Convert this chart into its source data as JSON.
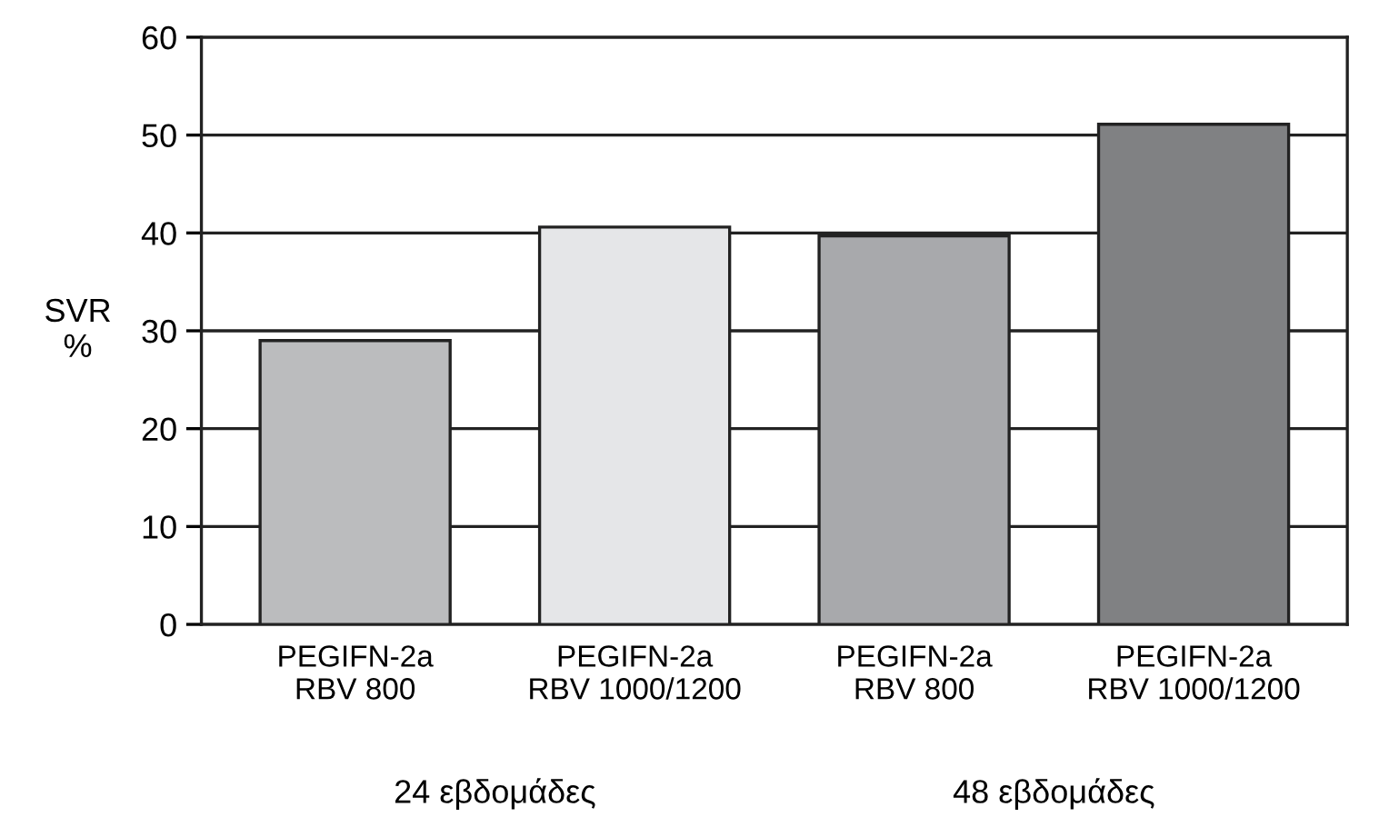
{
  "chart_data": {
    "type": "bar",
    "categories": [
      "PEGIFN-2a\nRBV 800",
      "PEGIFN-2a\nRBV 1000/1200",
      "PEGIFN-2a\nRBV 800",
      "PEGIFN-2a\nRBV 1000/1200"
    ],
    "values": [
      29,
      40.6,
      39.7,
      51.1
    ],
    "colors": [
      "#bbbcbe",
      "#e5e6e8",
      "#a8a9ac",
      "#808183"
    ],
    "ylabel": "SVR\n%",
    "ylim": [
      0,
      60
    ],
    "yticks": [
      0,
      10,
      20,
      30,
      40,
      50,
      60
    ],
    "grid": "y",
    "legend": false,
    "annotations": [
      "24 εβδομάδες",
      "48 εβδομάδες"
    ]
  }
}
